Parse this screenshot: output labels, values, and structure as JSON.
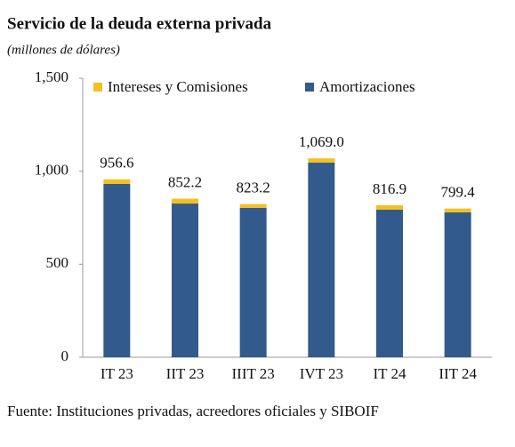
{
  "chart_data": {
    "type": "stacked_bar",
    "title": "Servicio de la deuda externa privada",
    "subtitle": "(millones de dólares)",
    "source": "Fuente: Instituciones privadas, acreedores oficiales y SIBOIF",
    "categories": [
      "IT 23",
      "IIT 23",
      "IIIT 23",
      "IVT 23",
      "IT 24",
      "IIT 24"
    ],
    "series": [
      {
        "name": "Amortizaciones",
        "color": "#325a8c",
        "values": [
          931.6,
          826.2,
          803.2,
          1046.0,
          792.9,
          779.4
        ]
      },
      {
        "name": "Intereses y Comisiones",
        "color": "#f5c01f",
        "values": [
          25,
          26,
          20,
          23,
          24,
          20
        ]
      }
    ],
    "totals": {
      "values": [
        956.6,
        852.2,
        823.2,
        1069.0,
        816.9,
        799.4
      ],
      "value_labels": [
        "956.6",
        "852.2",
        "823.2",
        "1,069.0",
        "816.9",
        "799.4"
      ]
    },
    "ylim": [
      0,
      1500
    ],
    "yticks": [
      0,
      500,
      {
        "value": 1000,
        "label": "1,000"
      },
      {
        "value": 1500,
        "label": "1,500"
      }
    ],
    "grid": false,
    "legend": "top"
  }
}
